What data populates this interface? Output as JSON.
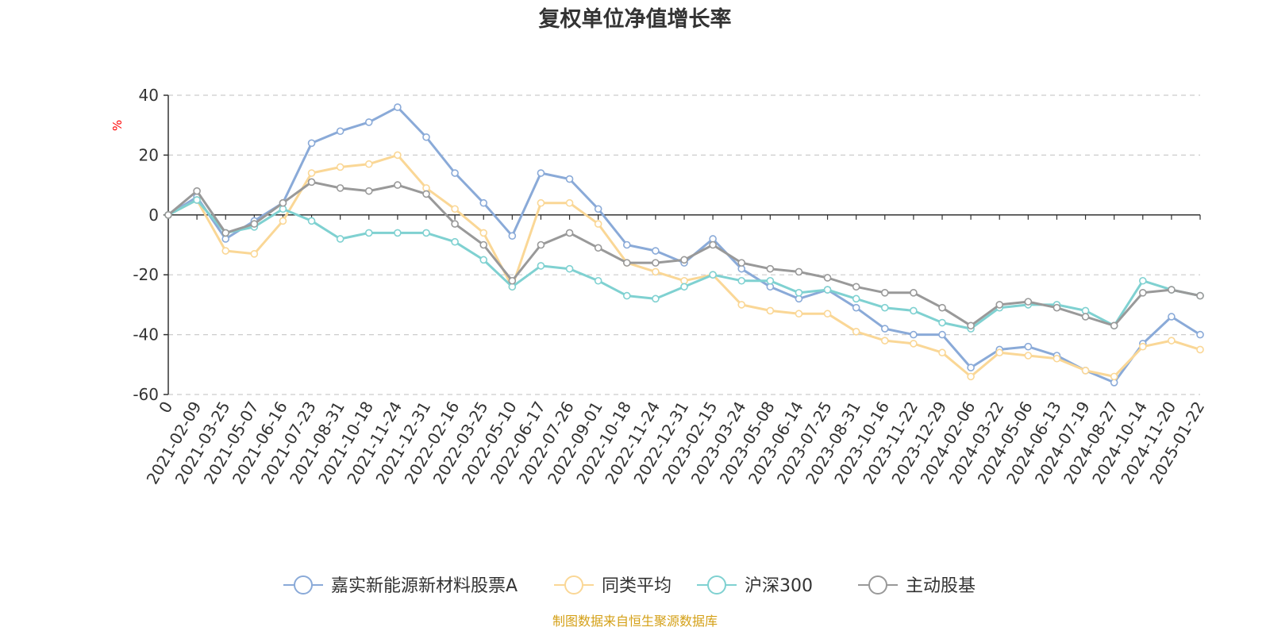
{
  "chart_data": {
    "type": "line",
    "title": "复权单位净值增长率",
    "ylabel": "%",
    "xlabel": "",
    "ylim": [
      -60,
      40
    ],
    "yticks": [
      40,
      20,
      0,
      -20,
      -40,
      -60
    ],
    "grid": true,
    "legend_position": "bottom",
    "source": "制图数据来自恒生聚源数据库",
    "x": [
      "0",
      "2021-02-09",
      "2021-03-25",
      "2021-05-07",
      "2021-06-16",
      "2021-07-23",
      "2021-08-31",
      "2021-10-18",
      "2021-11-24",
      "2021-12-31",
      "2022-02-16",
      "2022-03-25",
      "2022-05-10",
      "2022-06-17",
      "2022-07-26",
      "2022-09-01",
      "2022-10-18",
      "2022-11-24",
      "2022-12-31",
      "2023-02-15",
      "2023-03-24",
      "2023-05-08",
      "2023-06-14",
      "2023-07-25",
      "2023-08-31",
      "2023-10-16",
      "2023-11-22",
      "2023-12-29",
      "2024-02-06",
      "2024-03-22",
      "2024-05-06",
      "2024-06-13",
      "2024-07-19",
      "2024-08-27",
      "2024-10-14",
      "2024-11-20",
      "2025-01-22"
    ],
    "series": [
      {
        "name": "嘉实新能源新材料股票A",
        "color": "#8aaad8",
        "values": [
          0,
          6,
          -8,
          -2,
          4,
          24,
          28,
          31,
          36,
          26,
          14,
          4,
          -7,
          14,
          12,
          2,
          -10,
          -12,
          -16,
          -8,
          -18,
          -24,
          -28,
          -25,
          -31,
          -38,
          -40,
          -40,
          -51,
          -45,
          -44,
          -47,
          -52,
          -56,
          -43,
          -34,
          -40
        ]
      },
      {
        "name": "同类平均",
        "color": "#fad796",
        "values": [
          0,
          5,
          -12,
          -13,
          -2,
          14,
          16,
          17,
          20,
          9,
          2,
          -6,
          -24,
          4,
          4,
          -3,
          -16,
          -19,
          -22,
          -20,
          -30,
          -32,
          -33,
          -33,
          -39,
          -42,
          -43,
          -46,
          -54,
          -46,
          -47,
          -48,
          -52,
          -54,
          -44,
          -42,
          -45
        ]
      },
      {
        "name": "沪深300",
        "color": "#7fd1d1",
        "values": [
          0,
          5,
          -6,
          -4,
          2,
          -2,
          -8,
          -6,
          -6,
          -6,
          -9,
          -15,
          -24,
          -17,
          -18,
          -22,
          -27,
          -28,
          -24,
          -20,
          -22,
          -22,
          -26,
          -25,
          -28,
          -31,
          -32,
          -36,
          -38,
          -31,
          -30,
          -30,
          -32,
          -37,
          -22,
          -25,
          -27
        ]
      },
      {
        "name": "主动股基",
        "color": "#999999",
        "values": [
          0,
          8,
          -6,
          -3,
          4,
          11,
          9,
          8,
          10,
          7,
          -3,
          -10,
          -22,
          -10,
          -6,
          -11,
          -16,
          -16,
          -15,
          -10,
          -16,
          -18,
          -19,
          -21,
          -24,
          -26,
          -26,
          -31,
          -37,
          -30,
          -29,
          -31,
          -34,
          -37,
          -26,
          -25,
          -27
        ]
      }
    ]
  }
}
